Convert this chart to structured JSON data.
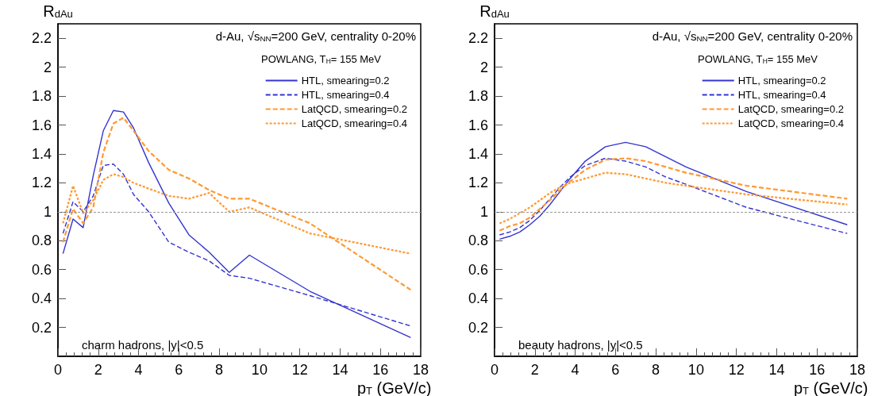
{
  "chart_data": [
    {
      "type": "line",
      "xlabel": "p$_{T}$ (GeV/c)",
      "ylabel": "R$_{dAu}$",
      "legend_title": "POWLANG, T$_{H}$= 155 MeV",
      "legend": "top right",
      "annotations": [
        "d-Au, √s$_{NN}$=200 GeV, centrality 0-20%",
        "charm hadrons, |y|<0.5"
      ],
      "x": [
        0.25,
        0.75,
        1.25,
        1.75,
        2.25,
        2.75,
        3.25,
        3.75,
        4.5,
        5.5,
        6.5,
        7.5,
        8.5,
        9.5,
        12.5,
        17.5
      ],
      "series": [
        {
          "name": "HTL, smearing=0.2",
          "color": "#3434d0",
          "line_style": "solid",
          "values": [
            0.71,
            0.95,
            0.89,
            1.25,
            1.56,
            1.7,
            1.69,
            1.58,
            1.34,
            1.06,
            0.84,
            0.72,
            0.58,
            0.7,
            0.45,
            0.13
          ]
        },
        {
          "name": "HTL, smearing=0.4",
          "color": "#3434d0",
          "line_style": "dashed",
          "values": [
            0.85,
            1.07,
            1.0,
            1.11,
            1.32,
            1.33,
            1.26,
            1.12,
            1.0,
            0.79,
            0.72,
            0.66,
            0.56,
            0.54,
            0.42,
            0.21
          ]
        },
        {
          "name": "LatQCD, smearing=0.2",
          "color": "#ff9933",
          "line_style": "dashed",
          "values": [
            0.79,
            1.02,
            0.92,
            1.03,
            1.41,
            1.61,
            1.65,
            1.56,
            1.42,
            1.29,
            1.23,
            1.15,
            1.09,
            1.09,
            0.92,
            0.46
          ]
        },
        {
          "name": "LatQCD, smearing=0.4",
          "color": "#ff9933",
          "line_style": "dotted",
          "values": [
            0.92,
            1.18,
            0.99,
            1.08,
            1.22,
            1.26,
            1.24,
            1.2,
            1.16,
            1.11,
            1.09,
            1.13,
            1.0,
            1.03,
            0.85,
            0.71
          ]
        }
      ],
      "ref_lines": [
        {
          "axis": "y",
          "value": 1,
          "color": "#999999",
          "line_style": "dotted"
        }
      ],
      "xlim": [
        0,
        18
      ],
      "xticks": [
        0,
        2,
        4,
        6,
        8,
        10,
        12,
        14,
        16,
        18
      ],
      "ylim": [
        0,
        2.3
      ],
      "yticks": [
        0.2,
        0.4,
        0.6,
        0.8,
        1,
        1.2,
        1.4,
        1.6,
        1.8,
        2,
        2.2
      ],
      "grid": false
    },
    {
      "type": "line",
      "xlabel": "p$_{T}$ (GeV/c)",
      "ylabel": "R$_{dAu}$",
      "legend_title": "POWLANG, T$_{H}$= 155 MeV",
      "legend": "top right",
      "annotations": [
        "d-Au, √s$_{NN}$=200 GeV, centrality 0-20%",
        "beauty hadrons, |y|<0.5"
      ],
      "x": [
        0.25,
        0.75,
        1.25,
        1.75,
        2.25,
        2.75,
        3.25,
        3.75,
        4.5,
        5.5,
        6.5,
        7.5,
        8.5,
        9.5,
        12.5,
        17.5
      ],
      "series": [
        {
          "name": "HTL, smearing=0.2",
          "color": "#3434d0",
          "line_style": "solid",
          "values": [
            0.81,
            0.83,
            0.86,
            0.91,
            0.97,
            1.05,
            1.14,
            1.23,
            1.35,
            1.45,
            1.48,
            1.45,
            1.38,
            1.31,
            1.14,
            0.91
          ]
        },
        {
          "name": "HTL, smearing=0.4",
          "color": "#3434d0",
          "line_style": "dashed",
          "values": [
            0.84,
            0.86,
            0.89,
            0.94,
            1.01,
            1.09,
            1.17,
            1.24,
            1.32,
            1.37,
            1.35,
            1.31,
            1.24,
            1.19,
            1.03,
            0.85
          ]
        },
        {
          "name": "LatQCD, smearing=0.2",
          "color": "#ff9933",
          "line_style": "dashed",
          "values": [
            0.87,
            0.9,
            0.92,
            0.96,
            1.02,
            1.08,
            1.15,
            1.21,
            1.29,
            1.36,
            1.37,
            1.35,
            1.31,
            1.27,
            1.18,
            1.09
          ]
        },
        {
          "name": "LatQCD, smearing=0.4",
          "color": "#ff9933",
          "line_style": "dotted",
          "values": [
            0.92,
            0.95,
            0.99,
            1.03,
            1.08,
            1.13,
            1.17,
            1.2,
            1.23,
            1.27,
            1.26,
            1.23,
            1.2,
            1.18,
            1.12,
            1.05
          ]
        }
      ],
      "ref_lines": [
        {
          "axis": "y",
          "value": 1,
          "color": "#999999",
          "line_style": "dotted"
        }
      ],
      "xlim": [
        0,
        18
      ],
      "xticks": [
        0,
        2,
        4,
        6,
        8,
        10,
        12,
        14,
        16,
        18
      ],
      "ylim": [
        0,
        2.3
      ],
      "yticks": [
        0.2,
        0.4,
        0.6,
        0.8,
        1,
        1.2,
        1.4,
        1.6,
        1.8,
        2,
        2.2
      ],
      "grid": false
    }
  ]
}
